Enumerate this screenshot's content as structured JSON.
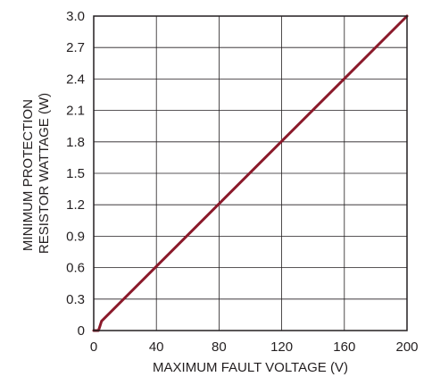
{
  "chart_data": {
    "type": "line",
    "title": "",
    "xlabel": "MAXIMUM FAULT VOLTAGE (V)",
    "ylabel": [
      "MINIMUM PROTECTION",
      "RESISTOR WATTAGE (W)"
    ],
    "xlim": [
      0,
      200
    ],
    "ylim": [
      0,
      3.0
    ],
    "x_ticks": [
      "0",
      "40",
      "80",
      "120",
      "160",
      "200"
    ],
    "y_ticks": [
      "0",
      "0.3",
      "0.6",
      "0.9",
      "1.2",
      "1.5",
      "1.8",
      "2.1",
      "2.4",
      "2.7",
      "3.0"
    ],
    "grid": true,
    "legend": "none",
    "series": [
      {
        "color": "#8b1a2b",
        "x": [
          0,
          3,
          3.5,
          5,
          200
        ],
        "y": [
          0,
          0,
          0.02,
          0.09,
          3.0
        ]
      }
    ]
  }
}
